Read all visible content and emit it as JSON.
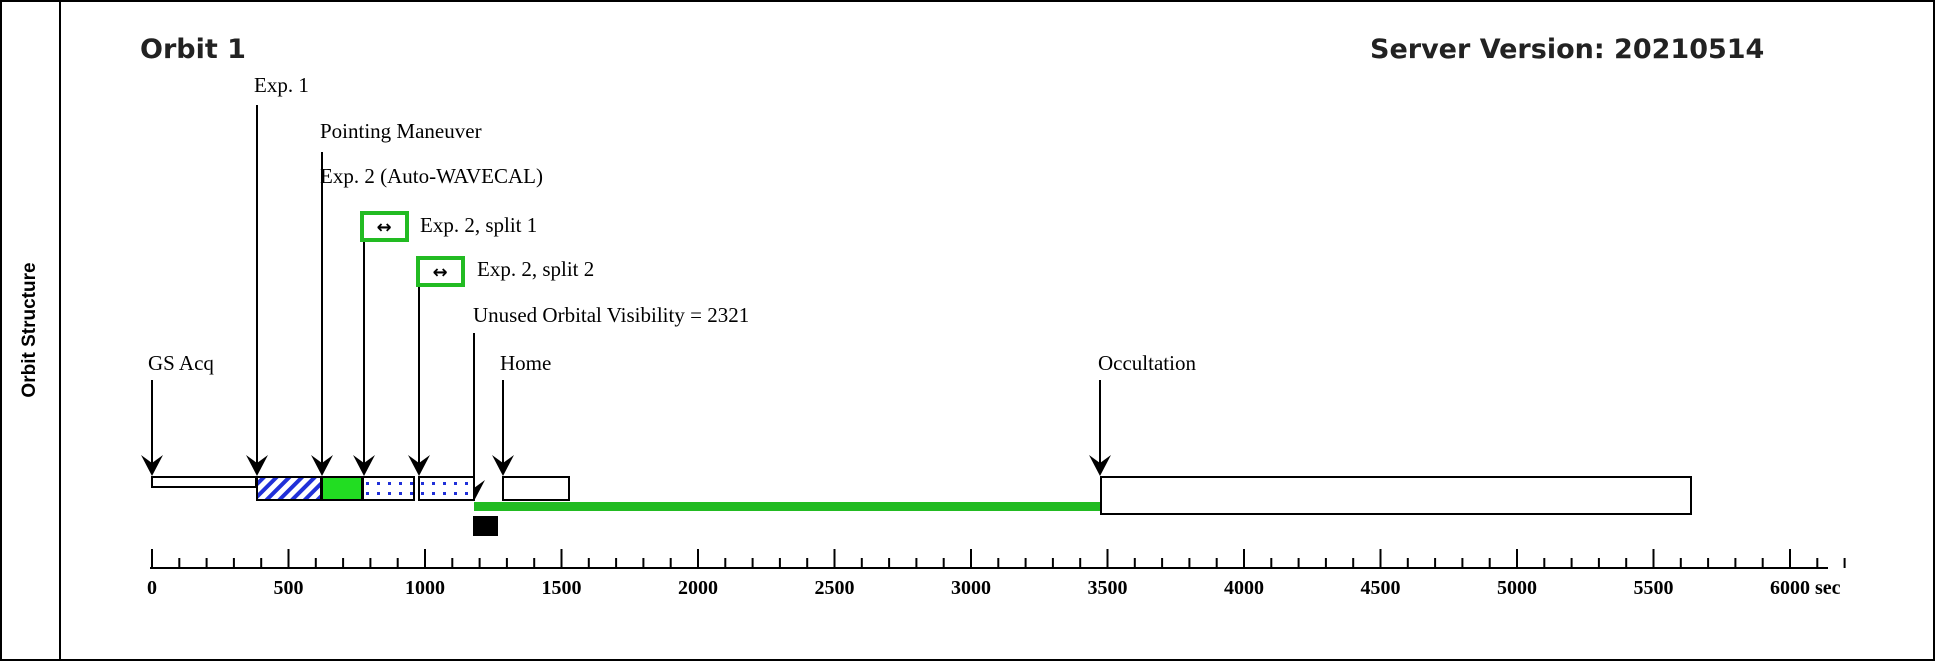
{
  "side_label": "Orbit Structure",
  "orbit_title": "Orbit 1",
  "server_version": "Server Version: 20210514",
  "labels": {
    "gs_acq": "GS Acq",
    "exp1": "Exp. 1",
    "pointing": "Pointing Maneuver",
    "exp2": "Exp. 2 (Auto-WAVECAL)",
    "split1": "Exp. 2, split 1",
    "split2": "Exp. 2, split 2",
    "unused": "Unused Orbital Visibility = 2321",
    "home": "Home",
    "occultation": "Occultation"
  },
  "axis": {
    "ticks": [
      "0",
      "500",
      "1000",
      "1500",
      "2000",
      "2500",
      "3000",
      "3500",
      "4000",
      "4500",
      "5000",
      "5500",
      "6000"
    ],
    "unit": "sec"
  },
  "chart_data": {
    "type": "timeline",
    "x_unit": "sec",
    "xlim": [
      0,
      6300
    ],
    "events": [
      {
        "label": "GS Acq",
        "time": 0
      },
      {
        "label": "Exp. 1",
        "time": 390
      },
      {
        "label": "Pointing Maneuver",
        "time": 630
      },
      {
        "label": "Exp. 2 (Auto-WAVECAL)",
        "time": 630
      },
      {
        "label": "Exp. 2, split 1",
        "time": 770
      },
      {
        "label": "Exp. 2, split 2",
        "time": 980
      },
      {
        "label": "Unused Orbital Visibility = 2321",
        "time": 1195
      },
      {
        "label": "Home",
        "time": 1300
      },
      {
        "label": "Occultation",
        "time": 3520
      }
    ],
    "segments": [
      {
        "name": "GS Acq",
        "start": 0,
        "end": 390
      },
      {
        "name": "Exp. 1",
        "start": 390,
        "end": 630
      },
      {
        "name": "Pointing Maneuver",
        "start": 630,
        "end": 770
      },
      {
        "name": "Exp. 2, split 1",
        "start": 770,
        "end": 975
      },
      {
        "name": "Exp. 2, split 2",
        "start": 985,
        "end": 1190
      },
      {
        "name": "Home",
        "start": 1300,
        "end": 1550
      },
      {
        "name": "Occultation",
        "start": 3520,
        "end": 5700
      }
    ],
    "unused_visibility": {
      "start": 1195,
      "end": 3520,
      "value": 2321
    },
    "marker": {
      "start": 1195,
      "end": 1290
    }
  }
}
